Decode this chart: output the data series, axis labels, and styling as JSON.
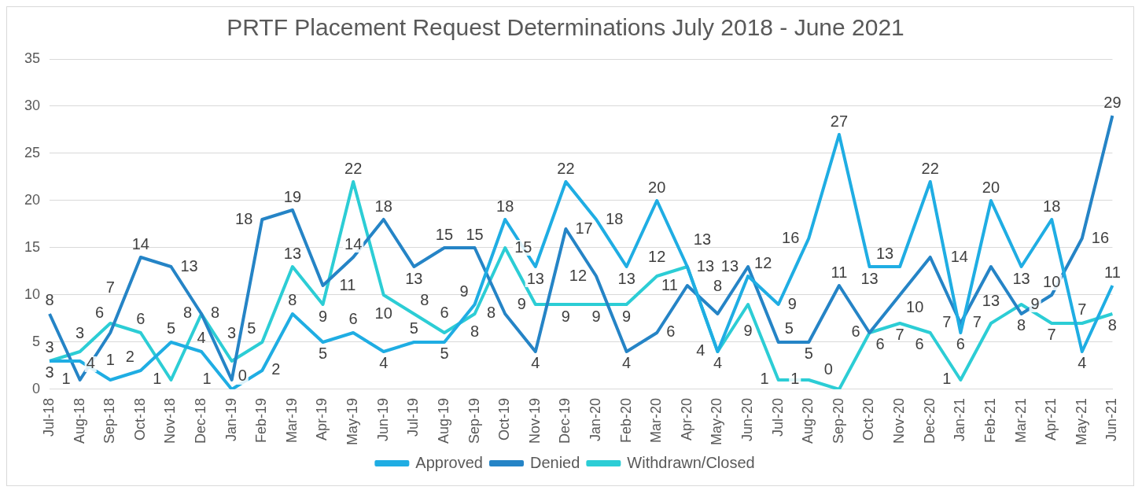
{
  "chart_data": {
    "type": "line",
    "title": "PRTF Placement Request Determinations July 2018 - June 2021",
    "categories": [
      "Jul-18",
      "Aug-18",
      "Sep-18",
      "Oct-18",
      "Nov-18",
      "Dec-18",
      "Jan-19",
      "Feb-19",
      "Mar-19",
      "Apr-19",
      "May-19",
      "Jun-19",
      "Jul-19",
      "Aug-19",
      "Sep-19",
      "Oct-19",
      "Nov-19",
      "Dec-19",
      "Jan-20",
      "Feb-20",
      "Mar-20",
      "Apr-20",
      "May-20",
      "Jun-20",
      "Jul-20",
      "Aug-20",
      "Sep-20",
      "Oct-20",
      "Nov-20",
      "Dec-20",
      "Jan-21",
      "Feb-21",
      "Mar-21",
      "Apr-21",
      "May-21",
      "Jun-21"
    ],
    "series": [
      {
        "name": "Approved",
        "color": "#1fade3",
        "values": [
          3,
          3,
          1,
          2,
          5,
          4,
          0,
          2,
          8,
          5,
          6,
          4,
          5,
          5,
          9,
          18,
          13,
          22,
          18,
          13,
          20,
          13,
          4,
          12,
          9,
          16,
          27,
          13,
          13,
          22,
          6,
          20,
          13,
          18,
          4,
          11
        ]
      },
      {
        "name": "Denied",
        "color": "#2584c6",
        "values": [
          8,
          1,
          6,
          14,
          13,
          8,
          1,
          18,
          19,
          11,
          14,
          18,
          13,
          15,
          15,
          8,
          4,
          17,
          12,
          4,
          6,
          11,
          8,
          13,
          5,
          5,
          11,
          6,
          10,
          14,
          7,
          13,
          8,
          10,
          16,
          29
        ]
      },
      {
        "name": "Withdrawn/Closed",
        "color": "#2ccdd5",
        "values": [
          3,
          4,
          7,
          6,
          1,
          8,
          3,
          5,
          13,
          9,
          22,
          10,
          8,
          6,
          8,
          15,
          9,
          9,
          9,
          9,
          12,
          13,
          4,
          9,
          1,
          1,
          0,
          6,
          7,
          6,
          1,
          7,
          9,
          7,
          7,
          8
        ]
      }
    ],
    "ylim": [
      0,
      35
    ],
    "yticks": [
      0,
      5,
      10,
      15,
      20,
      25,
      30,
      35
    ],
    "grid": "y",
    "legend": "bottom",
    "data_labels": true,
    "marker": "none",
    "line_style": "solid"
  }
}
